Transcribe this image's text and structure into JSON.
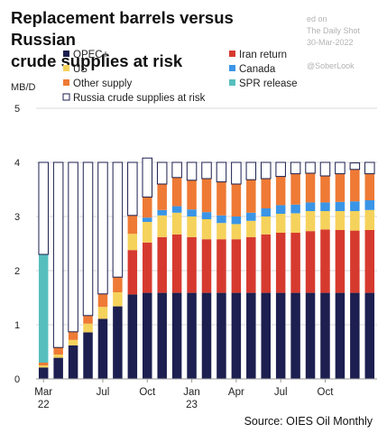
{
  "title_lines": [
    "Replacement barrels versus Russian",
    "crude supplies at risk"
  ],
  "watermark": {
    "line1": "ed on",
    "line2": "The Daily Shot",
    "date": "30-Mar-2022",
    "handle": "@SoberLook"
  },
  "source": "Source: OIES Oil Monthly",
  "colors": {
    "opec": "#1c1f4f",
    "iran": "#d63a2f",
    "us": "#f5d25b",
    "canada": "#3a95e6",
    "other": "#ee7a35",
    "spr": "#56bfbd",
    "russia": "#ffffff",
    "grid": "#d9d9d9"
  },
  "chart_data": {
    "type": "bar",
    "stacked": true,
    "ylabel": "MB/D",
    "ylim": [
      0,
      5
    ],
    "yticks": [
      "0",
      "1",
      "2",
      "3",
      "4",
      "5"
    ],
    "grid": true,
    "legend_position": "top-left",
    "x_tick_labels": [
      {
        "index": 0,
        "label": "Mar",
        "sub": "22"
      },
      {
        "index": 4,
        "label": "Jul",
        "sub": ""
      },
      {
        "index": 7,
        "label": "Oct",
        "sub": ""
      },
      {
        "index": 10,
        "label": "Jan",
        "sub": "23"
      },
      {
        "index": 13,
        "label": "Apr",
        "sub": ""
      },
      {
        "index": 16,
        "label": "Jul",
        "sub": ""
      },
      {
        "index": 19,
        "label": "Oct",
        "sub": ""
      }
    ],
    "legend": [
      {
        "key": "opec",
        "label": "OPEC+"
      },
      {
        "key": "iran",
        "label": "Iran return"
      },
      {
        "key": "us",
        "label": "US"
      },
      {
        "key": "canada",
        "label": "Canada"
      },
      {
        "key": "other",
        "label": "Other supply"
      },
      {
        "key": "spr",
        "label": "SPR release"
      },
      {
        "key": "russia",
        "label": "Russia crude supplies at risk"
      }
    ],
    "series": [
      {
        "key": "opec",
        "name": "OPEC+",
        "values": [
          0.21,
          0.39,
          0.62,
          0.86,
          1.11,
          1.34,
          1.56,
          1.59,
          1.59,
          1.59,
          1.59,
          1.59,
          1.59,
          1.59,
          1.59,
          1.59,
          1.59,
          1.59,
          1.59,
          1.59,
          1.59,
          1.59,
          1.59
        ]
      },
      {
        "key": "iran",
        "name": "Iran return",
        "values": [
          0,
          0,
          0,
          0,
          0,
          0,
          0.82,
          0.93,
          1.03,
          1.08,
          1.03,
          0.99,
          0.99,
          0.99,
          1.03,
          1.08,
          1.11,
          1.11,
          1.14,
          1.17,
          1.16,
          1.15,
          1.16
        ]
      },
      {
        "key": "us",
        "name": "US",
        "values": [
          0.04,
          0.06,
          0.1,
          0.16,
          0.22,
          0.26,
          0.3,
          0.38,
          0.4,
          0.4,
          0.38,
          0.37,
          0.3,
          0.28,
          0.3,
          0.33,
          0.35,
          0.36,
          0.37,
          0.34,
          0.35,
          0.36,
          0.37
        ]
      },
      {
        "key": "canada",
        "name": "Canada",
        "values": [
          0,
          0,
          0,
          0,
          0,
          0,
          0,
          0.08,
          0.1,
          0.12,
          0.13,
          0.13,
          0.14,
          0.14,
          0.15,
          0.15,
          0.16,
          0.16,
          0.16,
          0.16,
          0.17,
          0.18,
          0.18
        ]
      },
      {
        "key": "other",
        "name": "Other supply",
        "values": [
          0.05,
          0.13,
          0.15,
          0.15,
          0.24,
          0.28,
          0.34,
          0.38,
          0.48,
          0.53,
          0.54,
          0.62,
          0.62,
          0.6,
          0.61,
          0.55,
          0.53,
          0.57,
          0.54,
          0.49,
          0.52,
          0.59,
          0.49
        ]
      },
      {
        "key": "spr",
        "name": "SPR release",
        "values": [
          2.0,
          0,
          0,
          0,
          0,
          0,
          0,
          0,
          0,
          0,
          0,
          0,
          0,
          0,
          0,
          0,
          0,
          0,
          0,
          0,
          0,
          0,
          0
        ]
      },
      {
        "key": "russia",
        "name": "Russia crude supplies at risk",
        "values": [
          1.7,
          3.42,
          3.13,
          2.83,
          2.43,
          2.12,
          0.98,
          0.72,
          0.4,
          0.28,
          0.33,
          0.3,
          0.36,
          0.4,
          0.32,
          0.3,
          0.26,
          0.21,
          0.2,
          0.25,
          0.21,
          0.12,
          0.21
        ]
      }
    ],
    "russia_total": 4.0
  }
}
